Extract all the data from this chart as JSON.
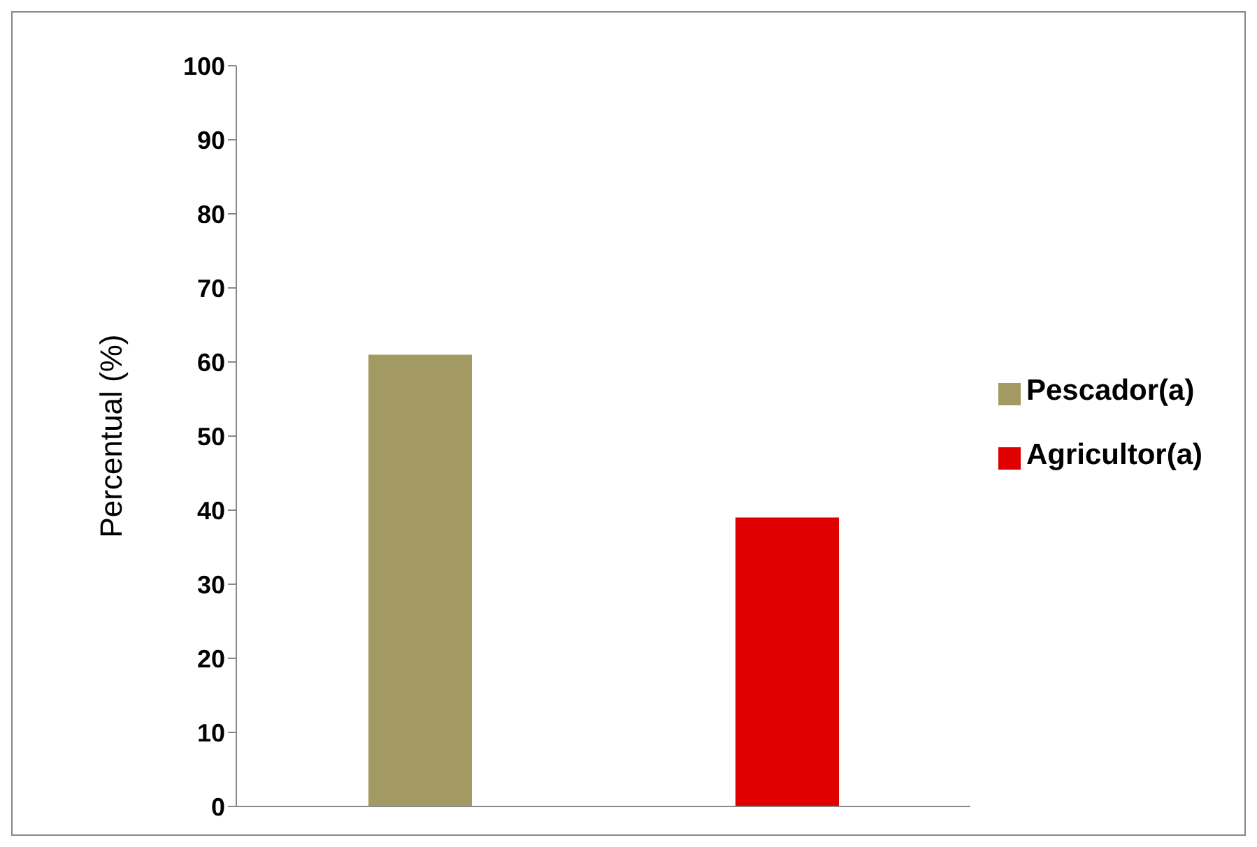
{
  "chart_data": {
    "type": "bar",
    "ylabel": "Percentual (%)",
    "categories": [
      null,
      null
    ],
    "series": [
      {
        "name": "Pescador(a)",
        "color": "#a39a63",
        "values": [
          61,
          null
        ]
      },
      {
        "name": "Agricultor(a)",
        "color": "#e00000",
        "values": [
          null,
          39
        ]
      }
    ],
    "ylim": [
      0,
      100
    ],
    "yticks": [
      0,
      10,
      20,
      30,
      40,
      50,
      60,
      70,
      80,
      90,
      100
    ],
    "grid": false,
    "legend": "right",
    "tick_labels": "y"
  }
}
